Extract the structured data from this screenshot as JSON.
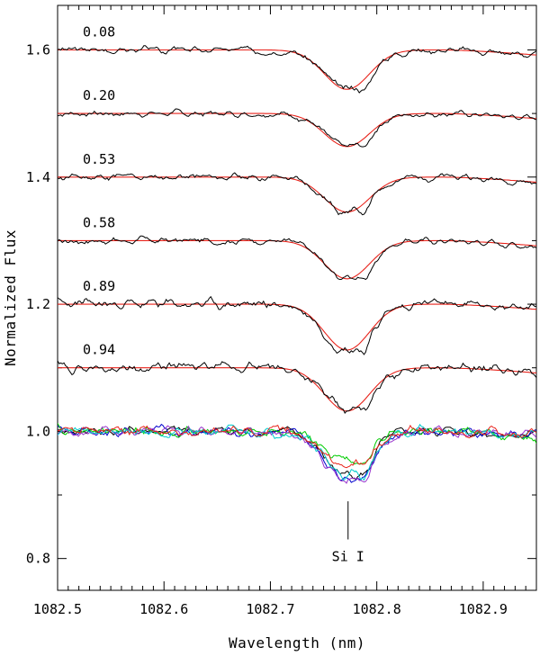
{
  "chart_data": {
    "type": "line",
    "title": "",
    "xlabel": "Wavelength (nm)",
    "ylabel": "Normalized Flux",
    "xlim": [
      1082.5,
      1082.95
    ],
    "ylim": [
      0.75,
      1.67
    ],
    "x_ticks": [
      {
        "value": 1082.5,
        "label": "1082.5"
      },
      {
        "value": 1082.6,
        "label": "1082.6"
      },
      {
        "value": 1082.7,
        "label": "1082.7"
      },
      {
        "value": 1082.8,
        "label": "1082.8"
      },
      {
        "value": 1082.9,
        "label": "1082.9"
      }
    ],
    "y_ticks": [
      {
        "value": 0.8,
        "label": "0.8"
      },
      {
        "value": 1.0,
        "label": "1.0"
      },
      {
        "value": 1.2,
        "label": "1.2"
      },
      {
        "value": 1.4,
        "label": "1.4"
      },
      {
        "value": 1.6,
        "label": "1.6"
      }
    ],
    "line_marker": {
      "wavelength": 1082.773,
      "y_top": 0.89,
      "y_bottom": 0.83,
      "label": "Si I"
    },
    "model_color": "#e8231b",
    "observed_color": "#000000",
    "offset_spectra": [
      {
        "phase": "0.08",
        "offset": 0.6,
        "depth": 0.062,
        "noise": 0.007,
        "seed": 3
      },
      {
        "phase": "0.20",
        "offset": 0.5,
        "depth": 0.052,
        "noise": 0.006,
        "seed": 7
      },
      {
        "phase": "0.53",
        "offset": 0.4,
        "depth": 0.055,
        "noise": 0.007,
        "seed": 11
      },
      {
        "phase": "0.58",
        "offset": 0.3,
        "depth": 0.06,
        "noise": 0.007,
        "seed": 17
      },
      {
        "phase": "0.89",
        "offset": 0.2,
        "depth": 0.072,
        "noise": 0.01,
        "seed": 23
      },
      {
        "phase": "0.94",
        "offset": 0.1,
        "depth": 0.068,
        "noise": 0.01,
        "seed": 29
      }
    ],
    "overlay_spectra": [
      {
        "color": "#000000",
        "depth": 0.068,
        "seed": 41
      },
      {
        "color": "#0000cc",
        "depth": 0.072,
        "seed": 43
      },
      {
        "color": "#00cc00",
        "depth": 0.045,
        "seed": 47
      },
      {
        "color": "#9933cc",
        "depth": 0.08,
        "seed": 53
      },
      {
        "color": "#00cccc",
        "depth": 0.07,
        "seed": 59
      },
      {
        "color": "#e8231b",
        "depth": 0.055,
        "seed": 61
      }
    ]
  }
}
